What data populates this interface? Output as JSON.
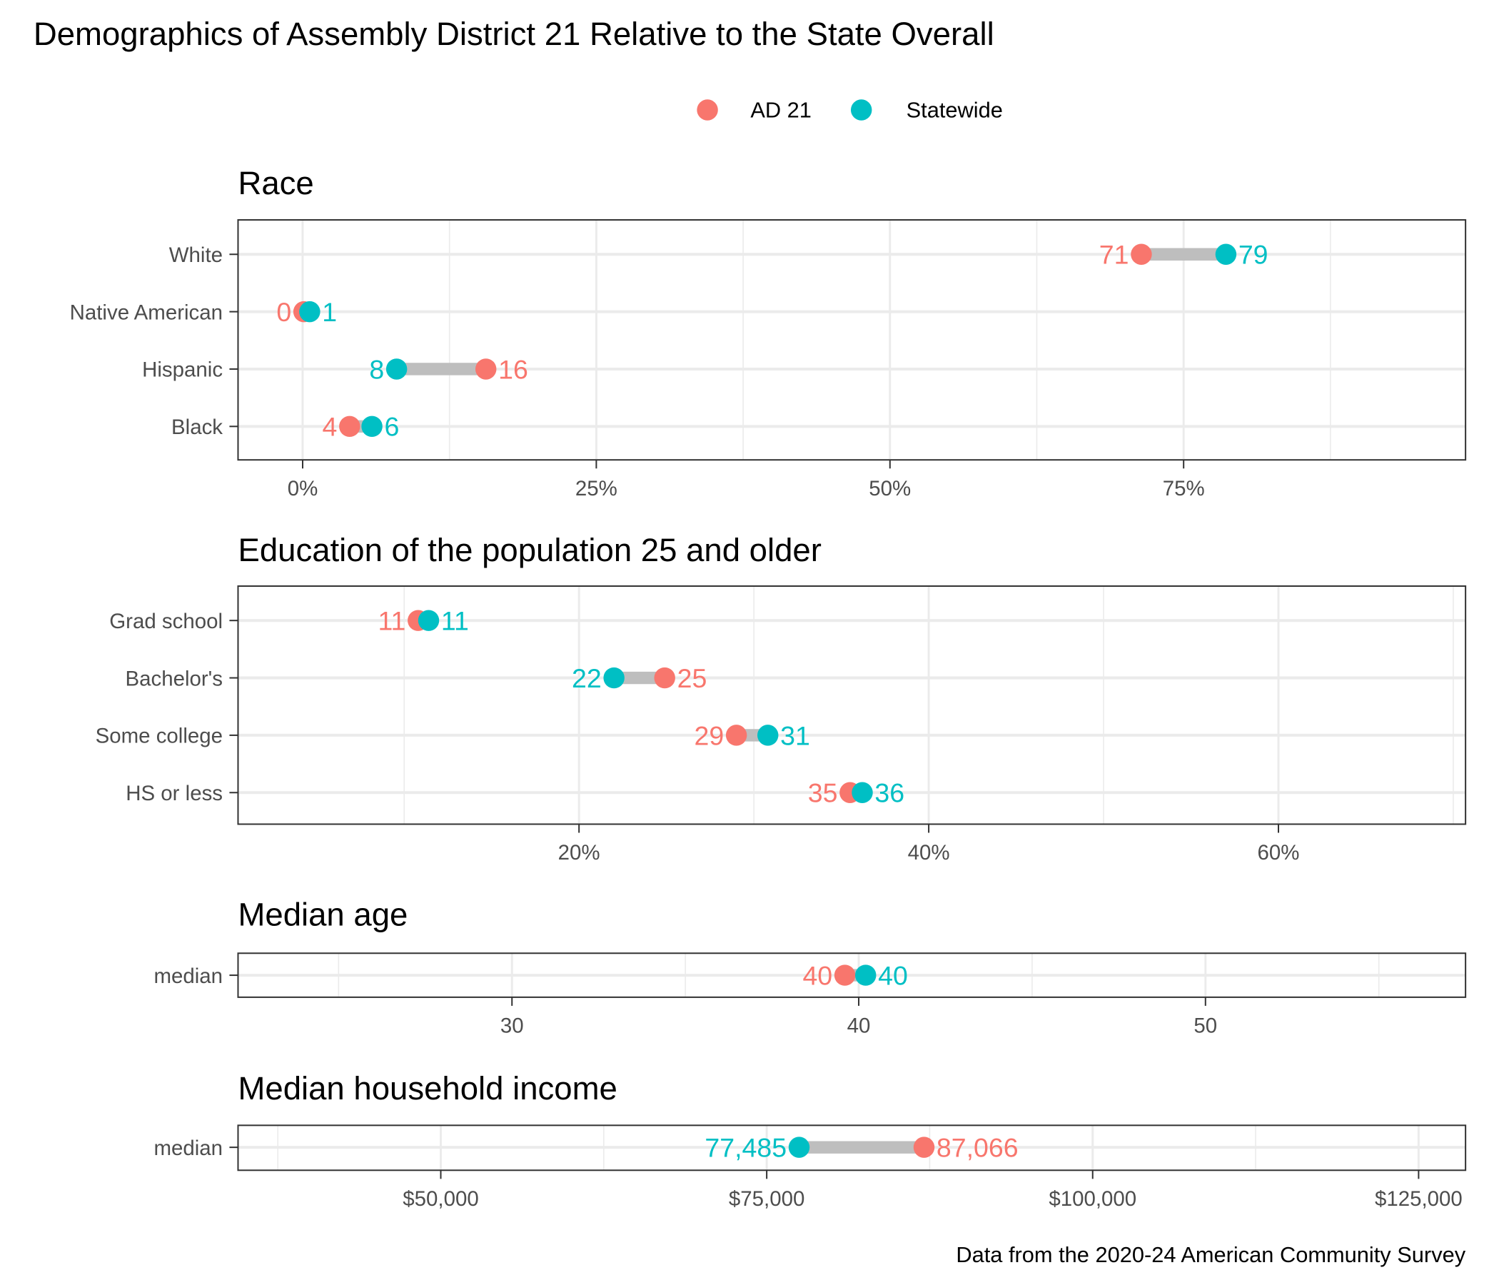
{
  "title": "Demographics of Assembly District 21 Relative to the State Overall",
  "caption": "Data from the 2020-24 American Community Survey",
  "legend": {
    "placement": "top",
    "items": [
      {
        "label": "AD 21",
        "color": "#F8766D"
      },
      {
        "label": "Statewide",
        "color": "#00BFC4"
      }
    ]
  },
  "colors": {
    "ad": "#F8766D",
    "state": "#00BFC4",
    "segment": "#BEBEBE",
    "grid": "#EBEBEB"
  },
  "chart_data": [
    {
      "type": "dumbbell",
      "title": "Race",
      "xlim": [
        -5.5,
        99
      ],
      "ticks": [
        {
          "v": 0,
          "label": "0%"
        },
        {
          "v": 25,
          "label": "25%"
        },
        {
          "v": 50,
          "label": "50%"
        },
        {
          "v": 75,
          "label": "75%"
        }
      ],
      "minor_ticks": [
        12.5,
        37.5,
        62.5,
        87.5
      ],
      "grid": true,
      "rows": [
        {
          "category": "White",
          "ad": 71.4,
          "state": 78.6,
          "ad_label": "71",
          "state_label": "79"
        },
        {
          "category": "Native American",
          "ad": 0.1,
          "state": 0.6,
          "ad_label": "0",
          "state_label": "1"
        },
        {
          "category": "Hispanic",
          "ad": 15.6,
          "state": 8.0,
          "ad_label": "16",
          "state_label": "8"
        },
        {
          "category": "Black",
          "ad": 4.0,
          "state": 5.9,
          "ad_label": "4",
          "state_label": "6"
        }
      ]
    },
    {
      "type": "dumbbell",
      "title": "Education of the population 25 and older",
      "xlim": [
        0.5,
        70.7
      ],
      "ticks": [
        {
          "v": 20,
          "label": "20%"
        },
        {
          "v": 40,
          "label": "40%"
        },
        {
          "v": 60,
          "label": "60%"
        }
      ],
      "minor_ticks": [
        10,
        30,
        50,
        70
      ],
      "grid": true,
      "rows": [
        {
          "category": "Grad school",
          "ad": 10.8,
          "state": 11.4,
          "ad_label": "11",
          "state_label": "11"
        },
        {
          "category": "Bachelor's",
          "ad": 24.9,
          "state": 22.0,
          "ad_label": "25",
          "state_label": "22"
        },
        {
          "category": "Some college",
          "ad": 29.0,
          "state": 30.8,
          "ad_label": "29",
          "state_label": "31"
        },
        {
          "category": "HS or less",
          "ad": 35.5,
          "state": 36.2,
          "ad_label": "35",
          "state_label": "36"
        }
      ]
    },
    {
      "type": "dumbbell",
      "title": "Median age",
      "xlim": [
        22.1,
        57.5
      ],
      "ticks": [
        {
          "v": 30,
          "label": "30"
        },
        {
          "v": 40,
          "label": "40"
        },
        {
          "v": 50,
          "label": "50"
        }
      ],
      "minor_ticks": [
        25,
        35,
        45,
        55
      ],
      "grid": true,
      "rows": [
        {
          "category": "median",
          "ad": 39.6,
          "state": 40.2,
          "ad_label": "40",
          "state_label": "40"
        }
      ]
    },
    {
      "type": "dumbbell",
      "title": "Median household income",
      "xlim": [
        34450,
        128600
      ],
      "ticks": [
        {
          "v": 50000,
          "label": "$50,000"
        },
        {
          "v": 75000,
          "label": "$75,000"
        },
        {
          "v": 100000,
          "label": "$100,000"
        },
        {
          "v": 125000,
          "label": "$125,000"
        }
      ],
      "minor_ticks": [
        37500,
        62500,
        87500,
        112500
      ],
      "grid": true,
      "rows": [
        {
          "category": "median",
          "ad": 87066,
          "state": 77485,
          "ad_label": "87,066",
          "state_label": "77,485"
        }
      ]
    }
  ]
}
